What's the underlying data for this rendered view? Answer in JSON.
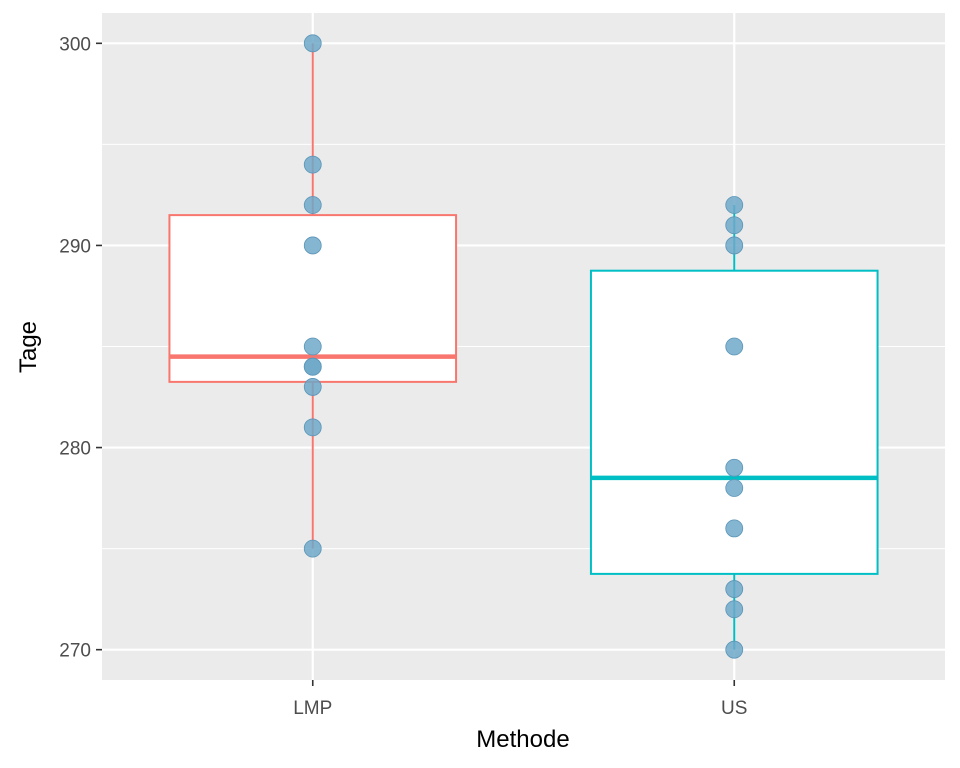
{
  "chart_data": {
    "type": "box",
    "xlabel": "Methode",
    "ylabel": "Tage",
    "categories": [
      "LMP",
      "US"
    ],
    "ylim": [
      268.5,
      301.5
    ],
    "yticks": [
      270,
      280,
      290,
      300
    ],
    "grid": true,
    "series": [
      {
        "category": "LMP",
        "color": "#F8766D",
        "q1": 283.25,
        "median": 284.5,
        "q3": 291.5,
        "whisker_low": 275,
        "whisker_high": 300,
        "points": [
          300,
          294,
          292,
          290,
          285,
          284,
          284,
          283,
          281,
          275
        ]
      },
      {
        "category": "US",
        "color": "#00BFC4",
        "q1": 273.75,
        "median": 278.5,
        "q3": 288.75,
        "whisker_low": 270,
        "whisker_high": 292,
        "points": [
          292,
          291,
          290,
          285,
          279,
          278,
          276,
          273,
          272,
          270
        ]
      }
    ],
    "point_color": "#6FA8C9"
  }
}
